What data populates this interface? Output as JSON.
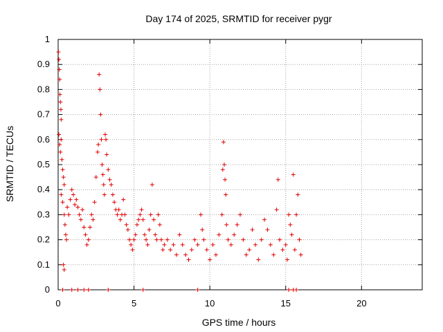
{
  "chart_data": {
    "type": "scatter",
    "title": "Day 174 of 2025, SRMTID for receiver pygr",
    "xlabel": "GPS time / hours",
    "ylabel": "SRMTID / TECUs",
    "xlim": [
      0,
      24
    ],
    "ylim": [
      0,
      1
    ],
    "xticks": [
      0,
      5,
      10,
      15,
      20
    ],
    "yticks": [
      0,
      0.1,
      0.2,
      0.3,
      0.4,
      0.5,
      0.6,
      0.7,
      0.8,
      0.9,
      1
    ],
    "xtick_labels": [
      "0",
      "5",
      "10",
      "15",
      "20"
    ],
    "ytick_labels": [
      "0",
      "0.1",
      "0.2",
      "0.3",
      "0.4",
      "0.5",
      "0.6",
      "0.7",
      "0.8",
      "0.9",
      "1"
    ],
    "grid": true,
    "marker": "+",
    "color": "#e00000",
    "series": [
      {
        "name": "pygr",
        "points": [
          [
            0.02,
            0.95
          ],
          [
            0.05,
            0.92
          ],
          [
            0.08,
            0.88
          ],
          [
            0.1,
            0.84
          ],
          [
            0.12,
            0.78
          ],
          [
            0.15,
            0.75
          ],
          [
            0.18,
            0.72
          ],
          [
            0.2,
            0.68
          ],
          [
            0.05,
            0.62
          ],
          [
            0.1,
            0.58
          ],
          [
            0.15,
            0.55
          ],
          [
            0.2,
            0.6
          ],
          [
            0.25,
            0.52
          ],
          [
            0.3,
            0.48
          ],
          [
            0.35,
            0.45
          ],
          [
            0.4,
            0.42
          ],
          [
            0.2,
            0.38
          ],
          [
            0.3,
            0.35
          ],
          [
            0.4,
            0.3
          ],
          [
            0.45,
            0.26
          ],
          [
            0.5,
            0.22
          ],
          [
            0.55,
            0.2
          ],
          [
            0.35,
            0.1
          ],
          [
            0.4,
            0.08
          ],
          [
            0.6,
            0.33
          ],
          [
            0.7,
            0.3
          ],
          [
            0.8,
            0.36
          ],
          [
            0.9,
            0.4
          ],
          [
            1.0,
            0.38
          ],
          [
            1.1,
            0.34
          ],
          [
            1.2,
            0.36
          ],
          [
            1.3,
            0.33
          ],
          [
            1.4,
            0.3
          ],
          [
            1.5,
            0.28
          ],
          [
            1.6,
            0.32
          ],
          [
            1.7,
            0.25
          ],
          [
            1.8,
            0.22
          ],
          [
            1.9,
            0.18
          ],
          [
            2.0,
            0.2
          ],
          [
            2.1,
            0.25
          ],
          [
            2.2,
            0.3
          ],
          [
            2.3,
            0.28
          ],
          [
            2.4,
            0.35
          ],
          [
            2.5,
            0.45
          ],
          [
            2.6,
            0.55
          ],
          [
            2.65,
            0.58
          ],
          [
            2.7,
            0.86
          ],
          [
            2.75,
            0.8
          ],
          [
            2.8,
            0.7
          ],
          [
            2.85,
            0.6
          ],
          [
            2.9,
            0.5
          ],
          [
            2.95,
            0.46
          ],
          [
            3.0,
            0.42
          ],
          [
            3.05,
            0.38
          ],
          [
            3.1,
            0.62
          ],
          [
            3.15,
            0.6
          ],
          [
            3.2,
            0.54
          ],
          [
            3.3,
            0.48
          ],
          [
            3.4,
            0.44
          ],
          [
            3.5,
            0.42
          ],
          [
            3.6,
            0.38
          ],
          [
            3.7,
            0.35
          ],
          [
            3.8,
            0.32
          ],
          [
            3.9,
            0.3
          ],
          [
            4.0,
            0.32
          ],
          [
            4.1,
            0.28
          ],
          [
            4.2,
            0.3
          ],
          [
            4.3,
            0.36
          ],
          [
            4.4,
            0.3
          ],
          [
            4.5,
            0.26
          ],
          [
            4.6,
            0.24
          ],
          [
            4.7,
            0.2
          ],
          [
            4.8,
            0.18
          ],
          [
            4.9,
            0.16
          ],
          [
            5.0,
            0.2
          ],
          [
            5.1,
            0.22
          ],
          [
            5.2,
            0.26
          ],
          [
            5.3,
            0.28
          ],
          [
            5.4,
            0.3
          ],
          [
            5.5,
            0.32
          ],
          [
            5.6,
            0.28
          ],
          [
            5.7,
            0.22
          ],
          [
            5.8,
            0.2
          ],
          [
            5.9,
            0.18
          ],
          [
            6.0,
            0.24
          ],
          [
            6.1,
            0.3
          ],
          [
            6.2,
            0.42
          ],
          [
            6.3,
            0.28
          ],
          [
            6.4,
            0.22
          ],
          [
            6.5,
            0.2
          ],
          [
            6.6,
            0.3
          ],
          [
            6.7,
            0.26
          ],
          [
            6.8,
            0.2
          ],
          [
            6.9,
            0.16
          ],
          [
            7.0,
            0.18
          ],
          [
            7.2,
            0.2
          ],
          [
            7.4,
            0.16
          ],
          [
            7.6,
            0.18
          ],
          [
            7.8,
            0.14
          ],
          [
            8.0,
            0.22
          ],
          [
            8.2,
            0.18
          ],
          [
            8.4,
            0.14
          ],
          [
            8.6,
            0.12
          ],
          [
            8.8,
            0.16
          ],
          [
            9.0,
            0.2
          ],
          [
            9.2,
            0.18
          ],
          [
            9.4,
            0.3
          ],
          [
            9.5,
            0.24
          ],
          [
            9.6,
            0.2
          ],
          [
            9.8,
            0.16
          ],
          [
            10.0,
            0.12
          ],
          [
            10.2,
            0.18
          ],
          [
            10.4,
            0.14
          ],
          [
            10.6,
            0.22
          ],
          [
            10.8,
            0.3
          ],
          [
            10.85,
            0.48
          ],
          [
            10.9,
            0.59
          ],
          [
            10.95,
            0.5
          ],
          [
            11.0,
            0.44
          ],
          [
            11.05,
            0.38
          ],
          [
            11.1,
            0.26
          ],
          [
            11.2,
            0.2
          ],
          [
            11.4,
            0.18
          ],
          [
            11.6,
            0.22
          ],
          [
            11.8,
            0.26
          ],
          [
            12.0,
            0.3
          ],
          [
            12.2,
            0.2
          ],
          [
            12.4,
            0.14
          ],
          [
            12.6,
            0.16
          ],
          [
            12.8,
            0.24
          ],
          [
            13.0,
            0.18
          ],
          [
            13.2,
            0.12
          ],
          [
            13.4,
            0.2
          ],
          [
            13.6,
            0.28
          ],
          [
            13.8,
            0.24
          ],
          [
            14.0,
            0.18
          ],
          [
            14.2,
            0.14
          ],
          [
            14.4,
            0.32
          ],
          [
            14.5,
            0.44
          ],
          [
            14.6,
            0.2
          ],
          [
            14.8,
            0.16
          ],
          [
            15.0,
            0.18
          ],
          [
            15.1,
            0.12
          ],
          [
            15.2,
            0.3
          ],
          [
            15.3,
            0.26
          ],
          [
            15.4,
            0.22
          ],
          [
            15.5,
            0.46
          ],
          [
            15.6,
            0.16
          ],
          [
            15.7,
            0.3
          ],
          [
            15.8,
            0.38
          ],
          [
            15.9,
            0.2
          ],
          [
            16.0,
            0.14
          ],
          [
            0.3,
            0.0
          ],
          [
            0.9,
            0.0
          ],
          [
            1.3,
            0.0
          ],
          [
            1.7,
            0.0
          ],
          [
            2.0,
            0.0
          ],
          [
            3.3,
            0.0
          ],
          [
            5.6,
            0.0
          ],
          [
            9.2,
            0.0
          ],
          [
            15.2,
            0.0
          ],
          [
            15.5,
            0.0
          ],
          [
            15.7,
            0.0
          ]
        ]
      }
    ]
  }
}
